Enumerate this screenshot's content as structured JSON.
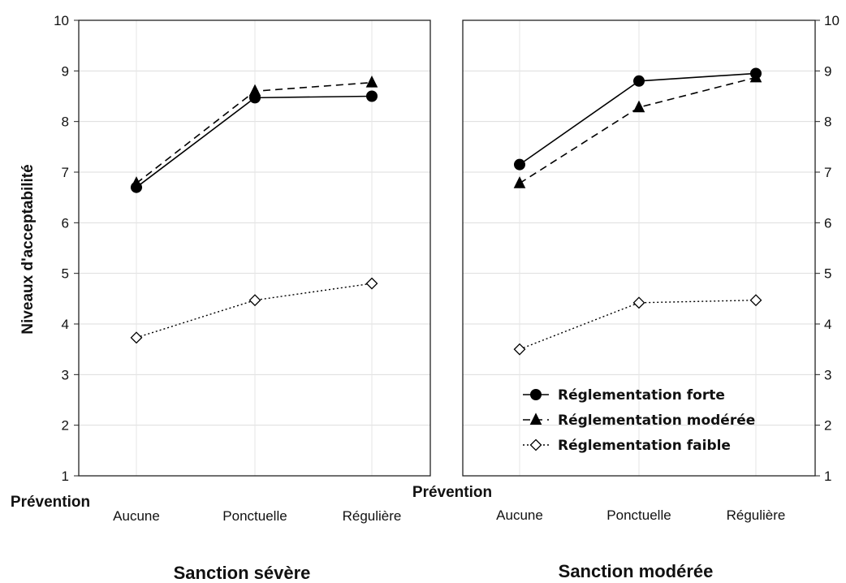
{
  "chart_data": [
    {
      "type": "line",
      "title": "Sanction sévère",
      "xlabel": "Prévention",
      "ylabel": "Niveaux d'acceptabilité",
      "categories": [
        "Aucune",
        "Ponctuelle",
        "Régulière"
      ],
      "ylim": [
        1,
        10
      ],
      "yticks": [
        "1",
        "2",
        "3",
        "4",
        "5",
        "6",
        "7",
        "8",
        "9",
        "10"
      ],
      "y_axis_side": "left",
      "grid": true,
      "series": [
        {
          "name": "Réglementation forte",
          "values": [
            6.7,
            8.47,
            8.5
          ],
          "color": "#000000",
          "line_style": "solid",
          "marker": "circle"
        },
        {
          "name": "Réglementation modérée",
          "values": [
            6.78,
            8.6,
            8.77
          ],
          "color": "#000000",
          "line_style": "dashed",
          "marker": "triangle"
        },
        {
          "name": "Réglementation faible",
          "values": [
            3.73,
            4.47,
            4.8
          ],
          "color": "#000000",
          "line_style": "dotted",
          "marker": "diamond-open"
        }
      ]
    },
    {
      "type": "line",
      "title": "Sanction modérée",
      "xlabel": "Prévention",
      "ylabel": "",
      "categories": [
        "Aucune",
        "Ponctuelle",
        "Régulière"
      ],
      "ylim": [
        1,
        10
      ],
      "yticks": [
        "1",
        "2",
        "3",
        "4",
        "5",
        "6",
        "7",
        "8",
        "9",
        "10"
      ],
      "y_axis_side": "right",
      "grid": true,
      "legend_position": "bottom-right",
      "series": [
        {
          "name": "Réglementation forte",
          "values": [
            7.15,
            8.8,
            8.95
          ],
          "color": "#000000",
          "line_style": "solid",
          "marker": "circle"
        },
        {
          "name": "Réglementation modérée",
          "values": [
            6.78,
            8.28,
            8.87
          ],
          "color": "#000000",
          "line_style": "dashed",
          "marker": "triangle"
        },
        {
          "name": "Réglementation faible",
          "values": [
            3.5,
            4.42,
            4.47
          ],
          "color": "#000000",
          "line_style": "dotted",
          "marker": "diamond-open"
        }
      ]
    }
  ]
}
